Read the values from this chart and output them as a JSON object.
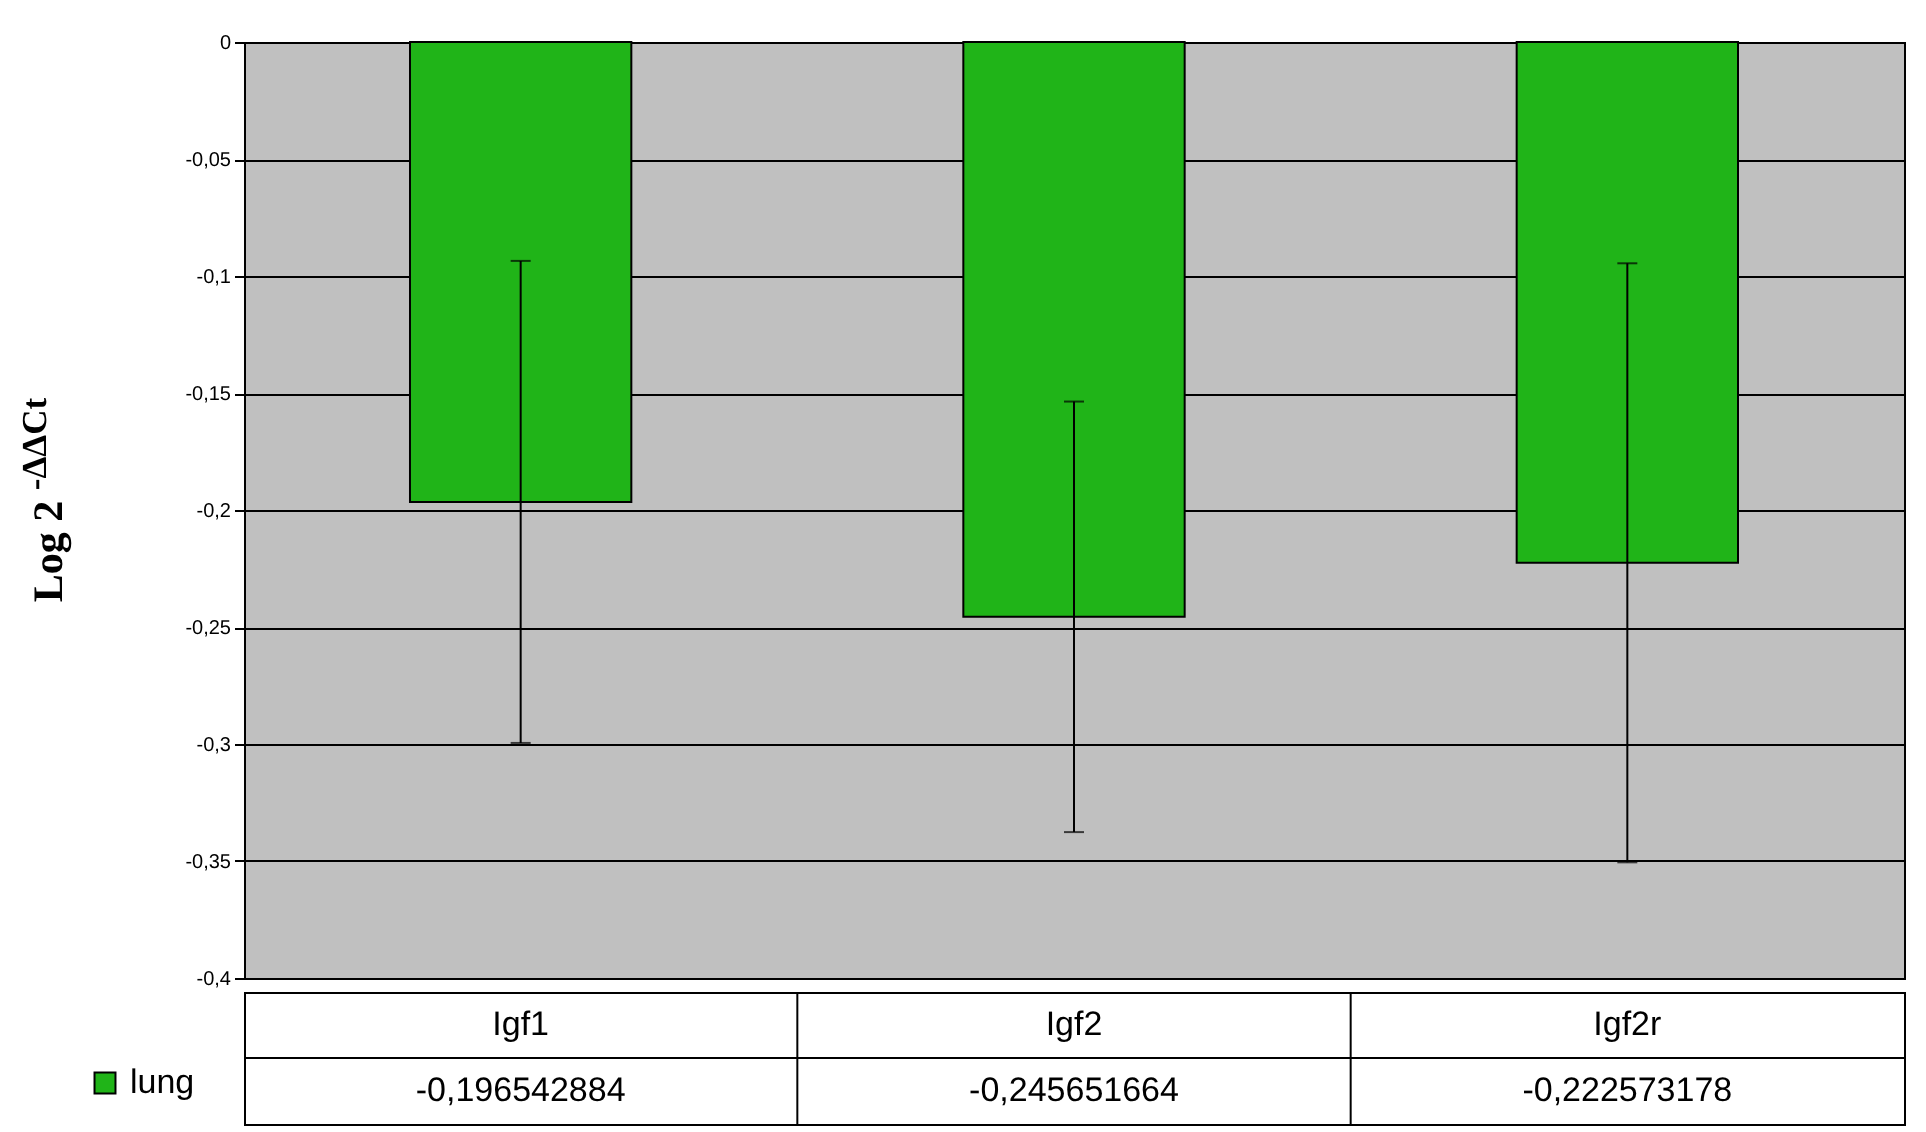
{
  "chart_data": {
    "type": "bar",
    "ylabel": "Log 2 $^{-ΔΔCt}$",
    "categories": [
      "Igf1",
      "Igf2",
      "Igf2r"
    ],
    "series": [
      {
        "name": "lung",
        "color": "#20b418",
        "values": [
          -0.196542884,
          -0.245651664,
          -0.222573178
        ],
        "errors": [
          0.103,
          0.092,
          0.128
        ],
        "value_labels": [
          "-0,196542884",
          "-0,245651664",
          "-0,222573178"
        ]
      }
    ],
    "ylim": [
      -0.4,
      0
    ],
    "yticks": [
      {
        "value": -0.4,
        "label": "-0,4"
      },
      {
        "value": -0.35,
        "label": "-0,35"
      },
      {
        "value": -0.3,
        "label": "-0,3"
      },
      {
        "value": -0.25,
        "label": "-0,25"
      },
      {
        "value": -0.2,
        "label": "-0,2"
      },
      {
        "value": -0.15,
        "label": "-0,15"
      },
      {
        "value": -0.1,
        "label": "-0,1"
      },
      {
        "value": -0.05,
        "label": "-0,05"
      },
      0
    ],
    "grid": "y",
    "legend": "bottom left"
  }
}
